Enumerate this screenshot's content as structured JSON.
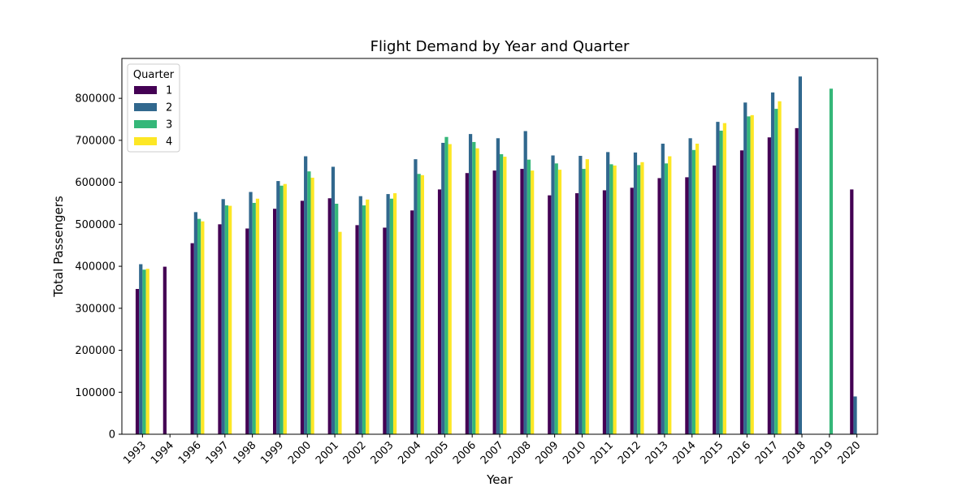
{
  "chart_data": {
    "type": "bar",
    "title": "Flight Demand by Year and Quarter",
    "xlabel": "Year",
    "ylabel": "Total Passengers",
    "ylim": [
      0,
      895000
    ],
    "yticks": [
      0,
      100000,
      200000,
      300000,
      400000,
      500000,
      600000,
      700000,
      800000
    ],
    "grid": false,
    "legend": {
      "title": "Quarter",
      "placement": "top-left"
    },
    "categories": [
      "1993",
      "1994",
      "1996",
      "1997",
      "1998",
      "1999",
      "2000",
      "2001",
      "2002",
      "2003",
      "2004",
      "2005",
      "2006",
      "2007",
      "2008",
      "2009",
      "2010",
      "2011",
      "2012",
      "2013",
      "2014",
      "2015",
      "2016",
      "2017",
      "2018",
      "2019",
      "2020"
    ],
    "series": [
      {
        "name": "1",
        "color": "#440154",
        "values": [
          346000,
          399000,
          455000,
          500000,
          490000,
          537000,
          556000,
          562000,
          498000,
          492000,
          533000,
          583000,
          622000,
          628000,
          632000,
          569000,
          574000,
          581000,
          587000,
          610000,
          612000,
          640000,
          676000,
          707000,
          729000,
          null,
          583000
        ]
      },
      {
        "name": "2",
        "color": "#31688e",
        "values": [
          405000,
          null,
          529000,
          560000,
          577000,
          603000,
          662000,
          637000,
          567000,
          572000,
          655000,
          694000,
          715000,
          705000,
          722000,
          664000,
          663000,
          672000,
          671000,
          692000,
          705000,
          744000,
          790000,
          814000,
          852000,
          null,
          90000
        ]
      },
      {
        "name": "3",
        "color": "#35b779",
        "values": [
          392000,
          null,
          513000,
          545000,
          551000,
          592000,
          626000,
          549000,
          545000,
          561000,
          620000,
          708000,
          696000,
          667000,
          654000,
          645000,
          632000,
          643000,
          641000,
          645000,
          677000,
          723000,
          757000,
          775000,
          null,
          823000,
          null
        ]
      },
      {
        "name": "4",
        "color": "#fde725",
        "values": [
          394000,
          null,
          507000,
          544000,
          561000,
          596000,
          611000,
          482000,
          559000,
          574000,
          617000,
          691000,
          681000,
          661000,
          628000,
          630000,
          655000,
          640000,
          648000,
          662000,
          692000,
          741000,
          760000,
          793000,
          null,
          null,
          null
        ]
      }
    ]
  }
}
